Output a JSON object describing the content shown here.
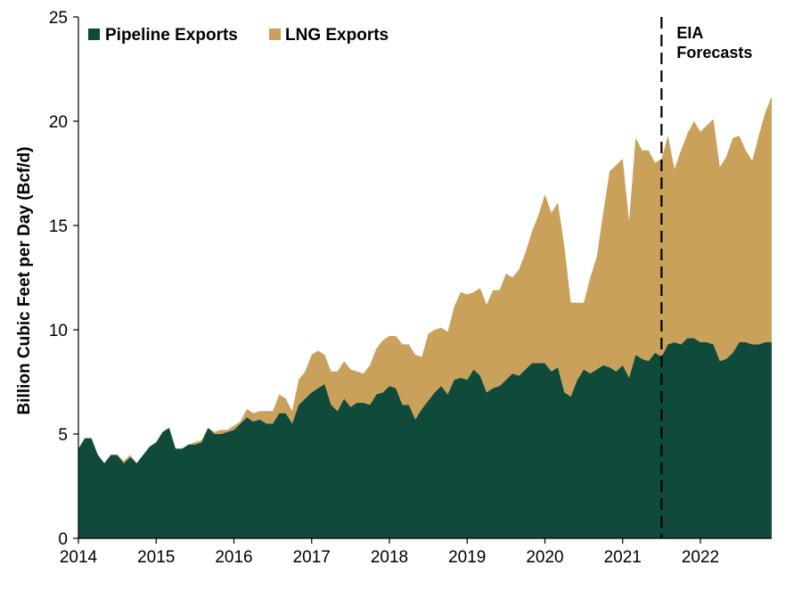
{
  "chart_data": {
    "type": "area",
    "stacked": true,
    "ylabel": "Billion Cubic Feet per Day (Bcf/d)",
    "xlabel": "",
    "ylim": [
      0,
      25
    ],
    "yticks": [
      0,
      5,
      10,
      15,
      20,
      25
    ],
    "xlim": [
      2014.0,
      2022.917
    ],
    "xticks": [
      "2014",
      "2015",
      "2016",
      "2017",
      "2018",
      "2019",
      "2020",
      "2021",
      "2022"
    ],
    "legend": {
      "position": "top-left"
    },
    "grid": false,
    "x": [
      2014.0,
      2014.083,
      2014.167,
      2014.25,
      2014.333,
      2014.417,
      2014.5,
      2014.583,
      2014.667,
      2014.75,
      2014.833,
      2014.917,
      2015.0,
      2015.083,
      2015.167,
      2015.25,
      2015.333,
      2015.417,
      2015.5,
      2015.583,
      2015.667,
      2015.75,
      2015.833,
      2015.917,
      2016.0,
      2016.083,
      2016.167,
      2016.25,
      2016.333,
      2016.417,
      2016.5,
      2016.583,
      2016.667,
      2016.75,
      2016.833,
      2016.917,
      2017.0,
      2017.083,
      2017.167,
      2017.25,
      2017.333,
      2017.417,
      2017.5,
      2017.583,
      2017.667,
      2017.75,
      2017.833,
      2017.917,
      2018.0,
      2018.083,
      2018.167,
      2018.25,
      2018.333,
      2018.417,
      2018.5,
      2018.583,
      2018.667,
      2018.75,
      2018.833,
      2018.917,
      2019.0,
      2019.083,
      2019.167,
      2019.25,
      2019.333,
      2019.417,
      2019.5,
      2019.583,
      2019.667,
      2019.75,
      2019.833,
      2019.917,
      2020.0,
      2020.083,
      2020.167,
      2020.25,
      2020.333,
      2020.417,
      2020.5,
      2020.583,
      2020.667,
      2020.75,
      2020.833,
      2020.917,
      2021.0,
      2021.083,
      2021.167,
      2021.25,
      2021.333,
      2021.417,
      2021.5,
      2021.583,
      2021.667,
      2021.75,
      2021.833,
      2021.917,
      2022.0,
      2022.083,
      2022.167,
      2022.25,
      2022.333,
      2022.417,
      2022.5,
      2022.583,
      2022.667,
      2022.75,
      2022.833,
      2022.917
    ],
    "series": [
      {
        "name": "Pipeline Exports",
        "color": "#0f4a3a",
        "values": [
          4.3,
          4.8,
          4.8,
          4.0,
          3.6,
          4.0,
          4.0,
          3.6,
          3.9,
          3.6,
          4.0,
          4.4,
          4.6,
          5.1,
          5.3,
          4.3,
          4.3,
          4.5,
          4.5,
          4.6,
          5.3,
          5.0,
          5.0,
          5.1,
          5.2,
          5.5,
          5.8,
          5.6,
          5.7,
          5.5,
          5.5,
          6.0,
          6.0,
          5.5,
          6.4,
          6.7,
          7.0,
          7.2,
          7.4,
          6.4,
          6.1,
          6.7,
          6.3,
          6.5,
          6.5,
          6.4,
          6.9,
          7.0,
          7.3,
          7.2,
          6.4,
          6.4,
          5.7,
          6.2,
          6.6,
          7.0,
          7.3,
          6.9,
          7.6,
          7.7,
          7.6,
          8.1,
          7.8,
          7.0,
          7.2,
          7.3,
          7.6,
          7.9,
          7.8,
          8.1,
          8.4,
          8.4,
          8.4,
          8.0,
          8.2,
          7.0,
          6.8,
          7.6,
          8.1,
          7.9,
          8.1,
          8.3,
          8.2,
          8.0,
          8.3,
          7.7,
          8.8,
          8.6,
          8.5,
          8.9,
          8.7,
          9.3,
          9.4,
          9.3,
          9.6,
          9.6,
          9.4,
          9.4,
          9.3,
          8.5,
          8.6,
          8.9,
          9.4,
          9.4,
          9.3,
          9.3,
          9.4,
          9.4
        ]
      },
      {
        "name": "LNG Exports",
        "color": "#c9a15a",
        "values": [
          0.0,
          0.0,
          0.0,
          0.0,
          0.0,
          0.0,
          0.0,
          0.1,
          0.1,
          0.0,
          0.0,
          0.0,
          0.0,
          0.0,
          0.0,
          0.0,
          0.0,
          0.0,
          0.1,
          0.1,
          0.0,
          0.1,
          0.2,
          0.1,
          0.2,
          0.1,
          0.4,
          0.4,
          0.4,
          0.6,
          0.6,
          0.9,
          0.7,
          0.6,
          1.2,
          1.3,
          1.8,
          1.8,
          1.4,
          1.6,
          1.9,
          1.8,
          1.8,
          1.5,
          1.4,
          1.9,
          2.2,
          2.5,
          2.4,
          2.5,
          2.9,
          2.9,
          3.1,
          2.5,
          3.2,
          3.0,
          2.8,
          3.0,
          3.5,
          4.1,
          4.1,
          3.7,
          4.2,
          4.2,
          4.7,
          4.6,
          5.1,
          4.6,
          5.1,
          5.6,
          6.3,
          7.1,
          8.1,
          7.6,
          7.9,
          7.0,
          4.5,
          3.7,
          3.2,
          4.6,
          5.4,
          7.3,
          9.4,
          9.9,
          9.9,
          7.5,
          10.4,
          10.0,
          10.1,
          9.1,
          9.5,
          10.0,
          8.3,
          9.3,
          9.8,
          10.4,
          10.1,
          10.4,
          10.8,
          9.3,
          9.7,
          10.3,
          9.9,
          9.2,
          8.8,
          10.0,
          11.0,
          11.8
        ]
      }
    ],
    "annotations": [
      {
        "text_lines": [
          "EIA",
          "Forecasts"
        ],
        "x": 2021.5,
        "style": "dashed vertical line"
      }
    ]
  }
}
